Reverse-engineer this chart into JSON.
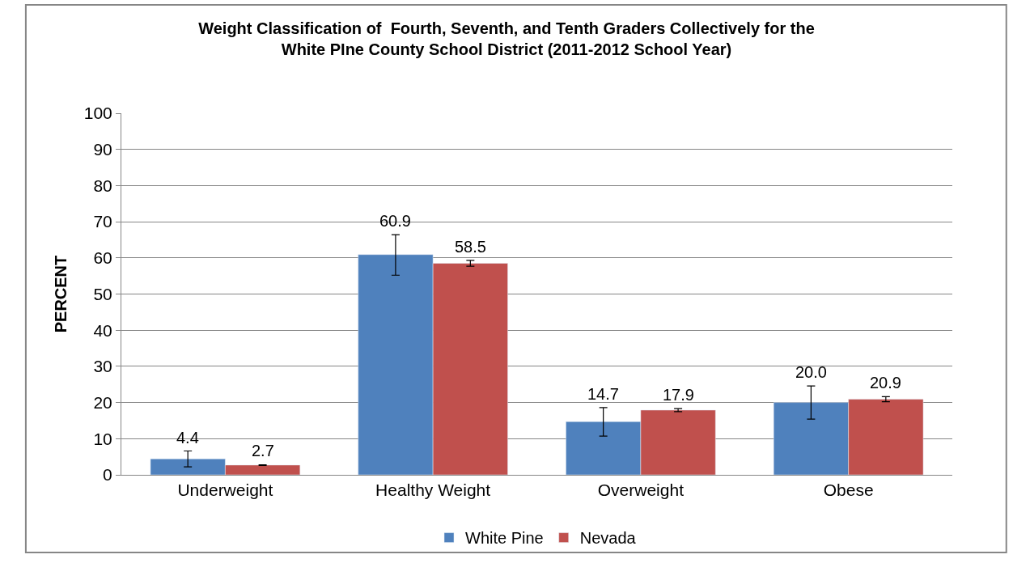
{
  "chart_data": {
    "type": "bar",
    "title": "Weight Classification of  Fourth, Seventh, and Tenth Graders Collectively for the\nWhite PIne County School District (2011-2012 School Year)",
    "ylabel": "PERCENT",
    "categories": [
      "Underweight",
      "Healthy Weight",
      "Overweight",
      "Obese"
    ],
    "series": [
      {
        "name": "White Pine",
        "color": "#4f81bd",
        "values": [
          4.4,
          60.9,
          14.7,
          20.0
        ],
        "value_labels": [
          "4.4",
          "60.9",
          "14.7",
          "20.0"
        ],
        "errors": [
          [
            2.2,
            6.6
          ],
          [
            55.2,
            66.4
          ],
          [
            10.7,
            18.6
          ],
          [
            15.4,
            24.6
          ]
        ]
      },
      {
        "name": "Nevada",
        "color": "#c0504d",
        "values": [
          2.7,
          58.5,
          17.9,
          20.9
        ],
        "value_labels": [
          "2.7",
          "58.5",
          "17.9",
          "20.9"
        ],
        "errors": [
          [
            2.6,
            2.8
          ],
          [
            57.7,
            59.3
          ],
          [
            17.5,
            18.3
          ],
          [
            20.2,
            21.6
          ]
        ]
      }
    ],
    "ylim": [
      0,
      100
    ],
    "yticks": [
      0,
      10,
      20,
      30,
      40,
      50,
      60,
      70,
      80,
      90,
      100
    ],
    "grid": "y",
    "legend": "bottom"
  }
}
